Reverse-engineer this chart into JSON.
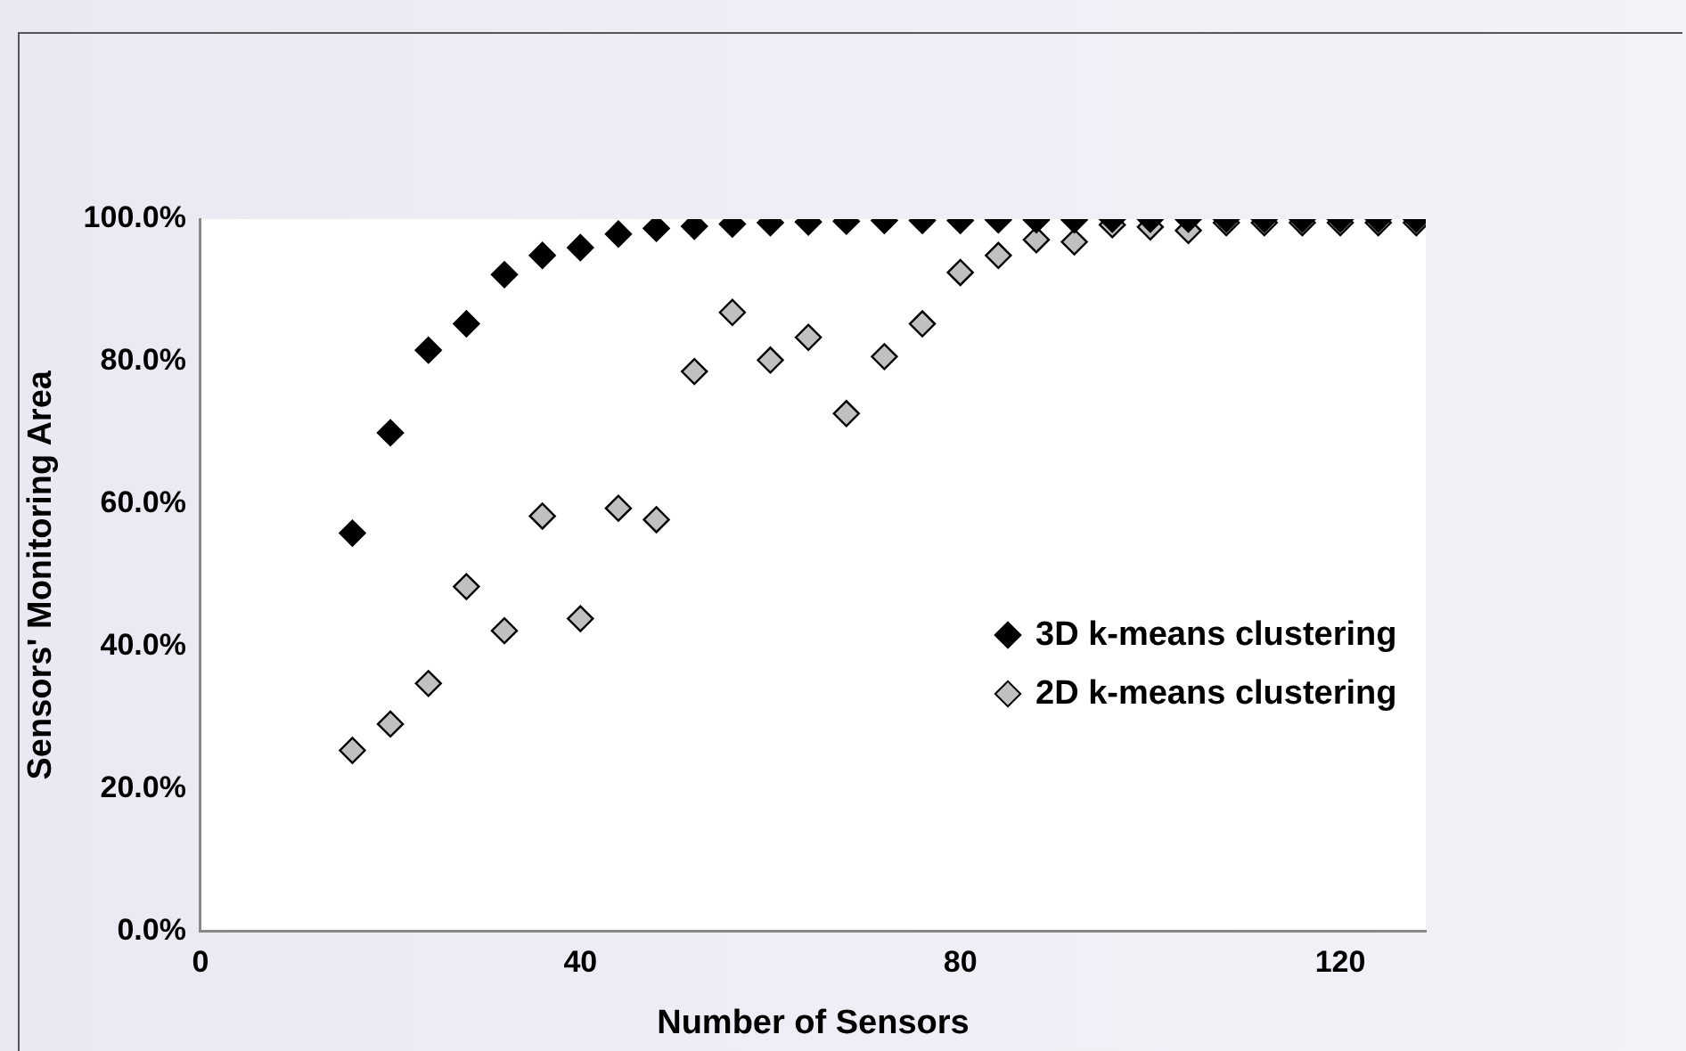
{
  "chart_data": {
    "type": "scatter",
    "xlabel": "Number of Sensors",
    "ylabel": "Sensors' Monitoring Area",
    "x": [
      16,
      20,
      24,
      28,
      32,
      36,
      40,
      44,
      48,
      52,
      56,
      60,
      64,
      68,
      72,
      76,
      80,
      84,
      88,
      92,
      96,
      100,
      104,
      108,
      112,
      116,
      120,
      124,
      128
    ],
    "xlim": [
      0,
      129
    ],
    "xticks": [
      0,
      40,
      80,
      120
    ],
    "ylim": [
      0,
      100
    ],
    "yticks": [
      {
        "value": 0,
        "label": "0.0%"
      },
      {
        "value": 20,
        "label": "20.0%"
      },
      {
        "value": 40,
        "label": "40.0%"
      },
      {
        "value": 60,
        "label": "60.0%"
      },
      {
        "value": 80,
        "label": "80.0%"
      },
      {
        "value": 100,
        "label": "100.0%"
      }
    ],
    "series": [
      {
        "name": "3D k-means clustering",
        "color": "#000000",
        "values": [
          55.9,
          70,
          81.6,
          85.3,
          92.2,
          94.9,
          96,
          97.9,
          98.7,
          99,
          99.3,
          99.5,
          99.6,
          99.7,
          99.8,
          99.8,
          99.8,
          99.9,
          99.9,
          99.9,
          100,
          100,
          100,
          100,
          100,
          100,
          100,
          100,
          100
        ]
      },
      {
        "name": "2D k-means clustering",
        "color": "#c0c0c0",
        "values": [
          25.4,
          29.1,
          34.8,
          48.4,
          42.2,
          58.3,
          43.9,
          59.4,
          57.8,
          78.6,
          86.9,
          80.2,
          83.4,
          72.7,
          80.7,
          85.3,
          92.5,
          94.9,
          97.1,
          96.8,
          99.2,
          98.9,
          98.4,
          99.5,
          99.5,
          99.5,
          99.5,
          99.5,
          99.5
        ]
      }
    ],
    "grid": false,
    "legend": "right",
    "marker": "diamond"
  }
}
